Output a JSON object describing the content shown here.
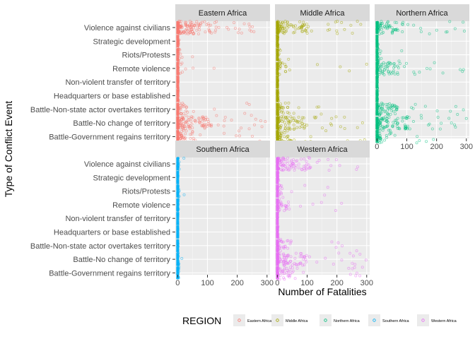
{
  "chart_data": {
    "type": "scatter",
    "title": "",
    "xlabel": "Number of Fatalities",
    "ylabel": "Type of Conflict Event",
    "xlim": [
      -8,
      310
    ],
    "x_ticks": [
      "0",
      "100",
      "200",
      "300"
    ],
    "categories": [
      "Violence against civilians",
      "Strategic development",
      "Riots/Protests",
      "Remote violence",
      "Non-violent transfer of territory",
      "Headquarters or base established",
      "Battle-Non-state actor overtakes territory",
      "Battle-No change of territory",
      "Battle-Government regains territory"
    ],
    "grid": true,
    "legend": {
      "title": "REGION",
      "position": "bottom",
      "entries": [
        "Eastern Africa",
        "Middle Africa",
        "Northern Africa",
        "Southern Africa",
        "Western Africa"
      ]
    },
    "colors": {
      "Eastern Africa": "#F8766D",
      "Middle Africa": "#A3A500",
      "Northern Africa": "#00BF7D",
      "Southern Africa": "#00B0F6",
      "Western Africa": "#E76BF3"
    },
    "panels": [
      {
        "name": "Eastern Africa",
        "series": [
          {
            "category": "Violence against civilians",
            "max": 300,
            "spread": 140
          },
          {
            "category": "Strategic development",
            "max": 5,
            "spread": 3
          },
          {
            "category": "Riots/Protests",
            "max": 60,
            "spread": 12
          },
          {
            "category": "Remote violence",
            "max": 150,
            "spread": 20
          },
          {
            "category": "Non-violent transfer of territory",
            "max": 3,
            "spread": 2
          },
          {
            "category": "Headquarters or base established",
            "max": 5,
            "spread": 3
          },
          {
            "category": "Battle-Non-state actor overtakes territory",
            "max": 250,
            "spread": 40
          },
          {
            "category": "Battle-No change of territory",
            "max": 300,
            "spread": 120
          },
          {
            "category": "Battle-Government regains territory",
            "max": 300,
            "spread": 60
          }
        ]
      },
      {
        "name": "Middle Africa",
        "series": [
          {
            "category": "Violence against civilians",
            "max": 300,
            "spread": 110
          },
          {
            "category": "Strategic development",
            "max": 5,
            "spread": 3
          },
          {
            "category": "Riots/Protests",
            "max": 40,
            "spread": 10
          },
          {
            "category": "Remote violence",
            "max": 300,
            "spread": 30
          },
          {
            "category": "Non-violent transfer of territory",
            "max": 3,
            "spread": 2
          },
          {
            "category": "Headquarters or base established",
            "max": 5,
            "spread": 3
          },
          {
            "category": "Battle-Non-state actor overtakes territory",
            "max": 150,
            "spread": 40
          },
          {
            "category": "Battle-No change of territory",
            "max": 300,
            "spread": 100
          },
          {
            "category": "Battle-Government regains territory",
            "max": 300,
            "spread": 60
          }
        ]
      },
      {
        "name": "Northern Africa",
        "series": [
          {
            "category": "Violence against civilians",
            "max": 300,
            "spread": 90
          },
          {
            "category": "Strategic development",
            "max": 5,
            "spread": 3
          },
          {
            "category": "Riots/Protests",
            "max": 100,
            "spread": 15
          },
          {
            "category": "Remote violence",
            "max": 300,
            "spread": 80
          },
          {
            "category": "Non-violent transfer of territory",
            "max": 3,
            "spread": 2
          },
          {
            "category": "Headquarters or base established",
            "max": 5,
            "spread": 3
          },
          {
            "category": "Battle-Non-state actor overtakes territory",
            "max": 300,
            "spread": 70
          },
          {
            "category": "Battle-No change of territory",
            "max": 300,
            "spread": 110
          },
          {
            "category": "Battle-Government regains territory",
            "max": 200,
            "spread": 50
          }
        ]
      },
      {
        "name": "Southern Africa",
        "series": [
          {
            "category": "Violence against civilians",
            "max": 30,
            "spread": 8
          },
          {
            "category": "Strategic development",
            "max": 2,
            "spread": 1
          },
          {
            "category": "Riots/Protests",
            "max": 25,
            "spread": 6
          },
          {
            "category": "Remote violence",
            "max": 10,
            "spread": 3
          },
          {
            "category": "Non-violent transfer of territory",
            "max": 2,
            "spread": 1
          },
          {
            "category": "Headquarters or base established",
            "max": 2,
            "spread": 1
          },
          {
            "category": "Battle-Non-state actor overtakes territory",
            "max": 5,
            "spread": 2
          },
          {
            "category": "Battle-No change of territory",
            "max": 30,
            "spread": 8
          },
          {
            "category": "Battle-Government regains territory",
            "max": 10,
            "spread": 4
          }
        ]
      },
      {
        "name": "Western Africa",
        "series": [
          {
            "category": "Violence against civilians",
            "max": 300,
            "spread": 110
          },
          {
            "category": "Strategic development",
            "max": 5,
            "spread": 3
          },
          {
            "category": "Riots/Protests",
            "max": 170,
            "spread": 25
          },
          {
            "category": "Remote violence",
            "max": 260,
            "spread": 40
          },
          {
            "category": "Non-violent transfer of territory",
            "max": 3,
            "spread": 2
          },
          {
            "category": "Headquarters or base established",
            "max": 5,
            "spread": 3
          },
          {
            "category": "Battle-Non-state actor overtakes territory",
            "max": 300,
            "spread": 50
          },
          {
            "category": "Battle-No change of territory",
            "max": 300,
            "spread": 100
          },
          {
            "category": "Battle-Government regains territory",
            "max": 300,
            "spread": 60
          }
        ]
      }
    ]
  }
}
